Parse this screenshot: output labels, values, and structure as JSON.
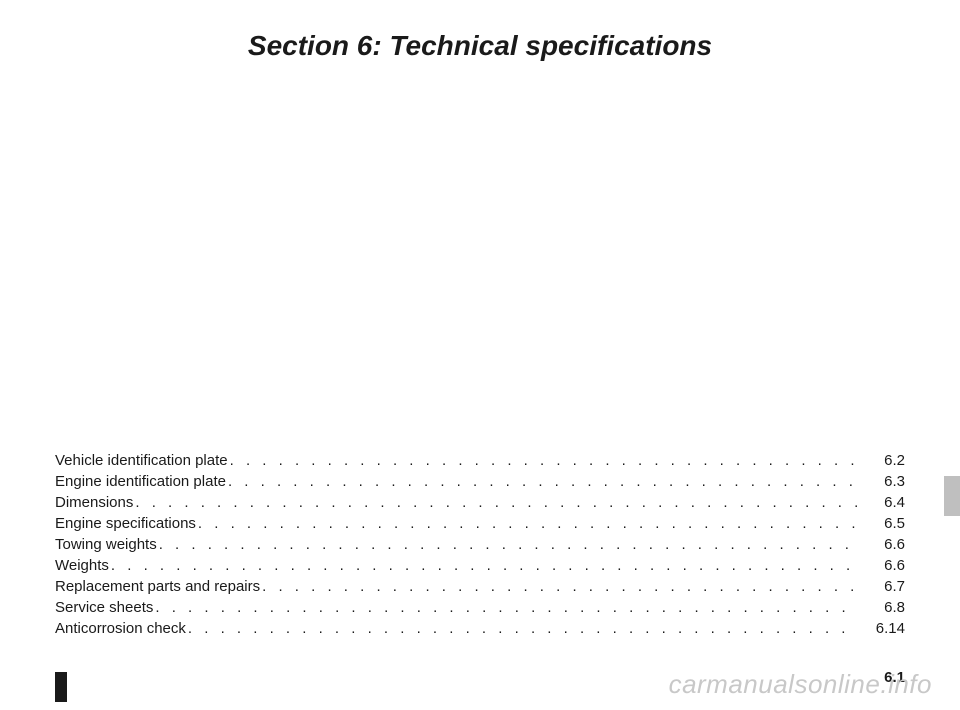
{
  "title": "Section 6: Technical specifications",
  "toc": [
    {
      "label": "Vehicle identification plate",
      "page": "6.2"
    },
    {
      "label": "Engine identification plate",
      "page": "6.3"
    },
    {
      "label": "Dimensions",
      "page": "6.4"
    },
    {
      "label": "Engine specifications",
      "page": "6.5"
    },
    {
      "label": "Towing weights",
      "page": "6.6"
    },
    {
      "label": "Weights",
      "page": "6.6"
    },
    {
      "label": "Replacement parts and repairs",
      "page": "6.7"
    },
    {
      "label": "Service sheets",
      "page": "6.8"
    },
    {
      "label": "Anticorrosion check",
      "page": "6.14"
    }
  ],
  "page_number": "6.1",
  "watermark": "carmanualsonline.info",
  "colors": {
    "text": "#1a1a1a",
    "background": "#ffffff",
    "tab_marker": "#bfbfbf",
    "watermark": "#c8c8c8"
  },
  "fonts": {
    "title_size_pt": 21,
    "title_weight": "bold",
    "title_style": "italic",
    "body_size_pt": 11,
    "family": "Arial"
  }
}
